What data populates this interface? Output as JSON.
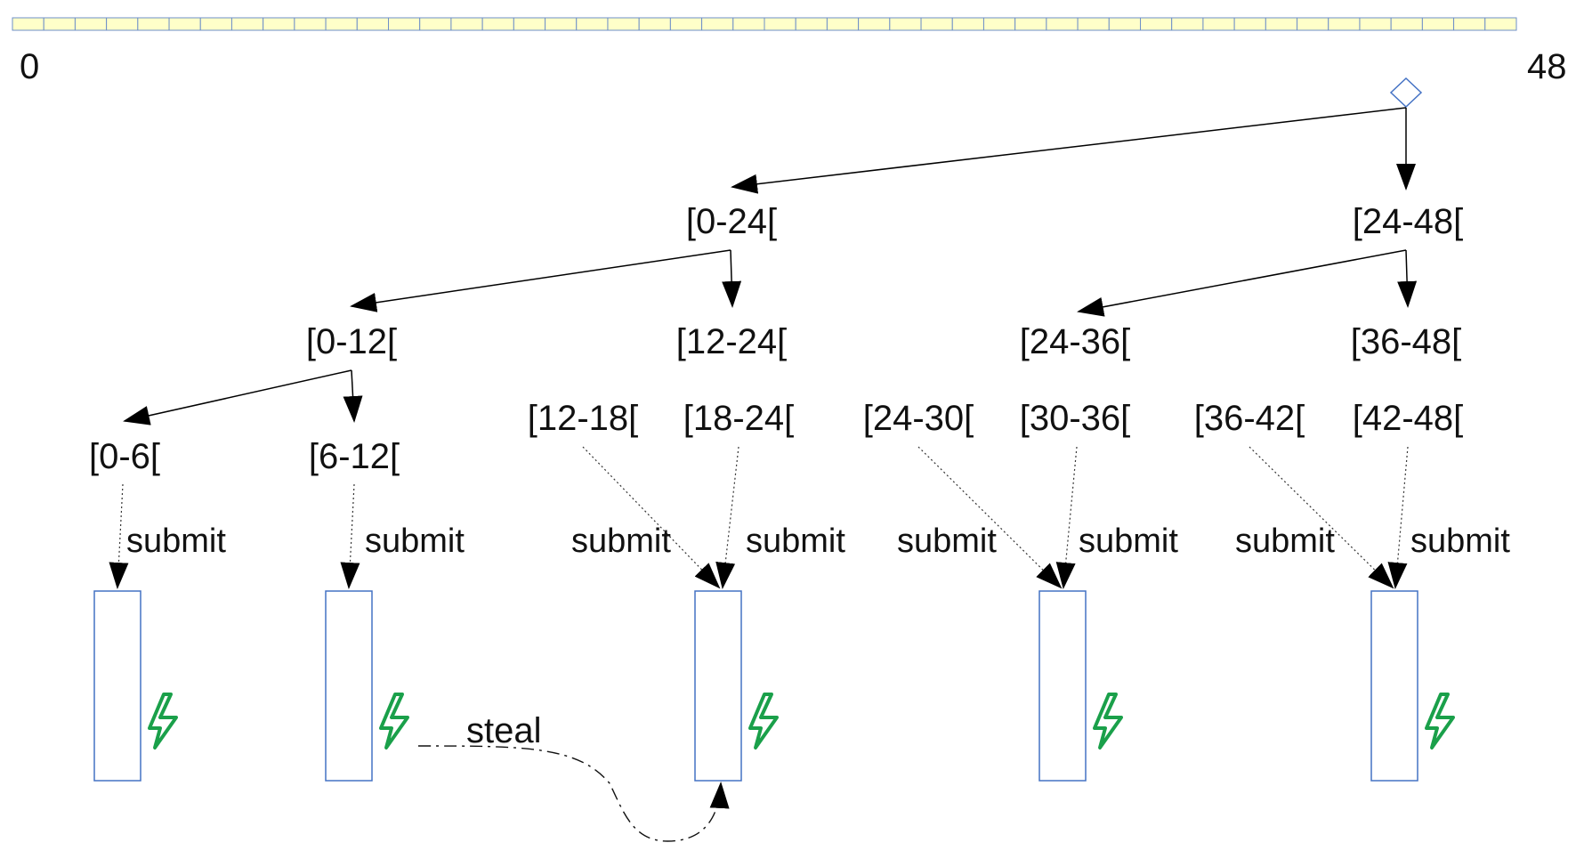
{
  "array": {
    "start_label": "0",
    "end_label": "48",
    "cell_count": 48,
    "fill": "#FFFFC9",
    "stroke": "#6E8FC8"
  },
  "ranges": {
    "r0_24": "[0-24[",
    "r24_48": "[24-48[",
    "r0_12": "[0-12[",
    "r12_24": "[12-24[",
    "r24_36": "[24-36[",
    "r36_48": "[36-48[",
    "r0_6": "[0-6[",
    "r6_12": "[6-12[",
    "r12_18": "[12-18[",
    "r18_24": "[18-24[",
    "r24_30": "[24-30[",
    "r30_36": "[30-36[",
    "r36_42": "[36-42[",
    "r42_48": "[42-48["
  },
  "submit_label": "submit",
  "steal_label": "steal",
  "queues": {
    "count": 5,
    "stroke": "#6E8FC8"
  },
  "workers": {
    "icon": "lightning-icon",
    "color": "#1AA04A",
    "count": 5
  }
}
